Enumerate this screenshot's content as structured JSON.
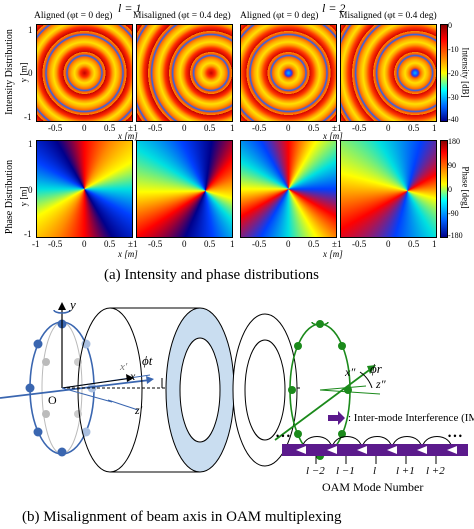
{
  "figure_a": {
    "group_labels": [
      "l = 1",
      "l = 2"
    ],
    "column_titles": [
      "Aligned (φt = 0 deg)",
      "Misaligned (φt = 0.4 deg)",
      "Aligned (φt = 0 deg)",
      "Misaligned (φt = 0.4 deg)"
    ],
    "row_labels": [
      "Intensity Distribution",
      "Phase Distribution"
    ],
    "xlabel": "x [m]",
    "ylabel": "y [m]",
    "x_ticks": [
      "-1",
      "-0.5",
      "0",
      "0.5",
      "±1",
      "-0.5",
      "0",
      "0.5",
      "1"
    ],
    "x_ticks_right": [
      "-1",
      "-0.5",
      "0",
      "0.5",
      "±1",
      "-0.5",
      "0",
      "0.5",
      "1"
    ],
    "y_ticks": [
      "1",
      "0",
      "-1"
    ],
    "intensity_colorbar": {
      "label": "Intensity [dB]",
      "ticks": [
        "0",
        "-10",
        "-20",
        "-30",
        "-40"
      ]
    },
    "phase_colorbar": {
      "label": "Phase [deg]",
      "ticks": [
        "180",
        "90",
        "0",
        "-90",
        "-180"
      ]
    },
    "caption": "(a) Intensity and phase distributions"
  },
  "figure_b": {
    "labels": {
      "y": "y",
      "x": "x",
      "x_prime": "x′",
      "z_prime": "z′",
      "x_dprime": "x″",
      "z_dprime": "z″",
      "origin": "O",
      "phi_t": "ϕt",
      "phi_r": "ϕr"
    },
    "legend_text": ": Inter-mode Interference (IMI)",
    "mode_labels": [
      "l −2",
      "l −1",
      "l",
      "l +1",
      "l +2"
    ],
    "dots": "• • •",
    "axis_title": "OAM Mode Number",
    "caption": "(b) Misalignment of beam axis in OAM multiplexing"
  },
  "colors": {
    "arrow_purple": "#5b1a8c",
    "blue_ring": "#3a66b0",
    "green_ring": "#1b8a1b",
    "disk_blue": "#c9ddf0"
  }
}
